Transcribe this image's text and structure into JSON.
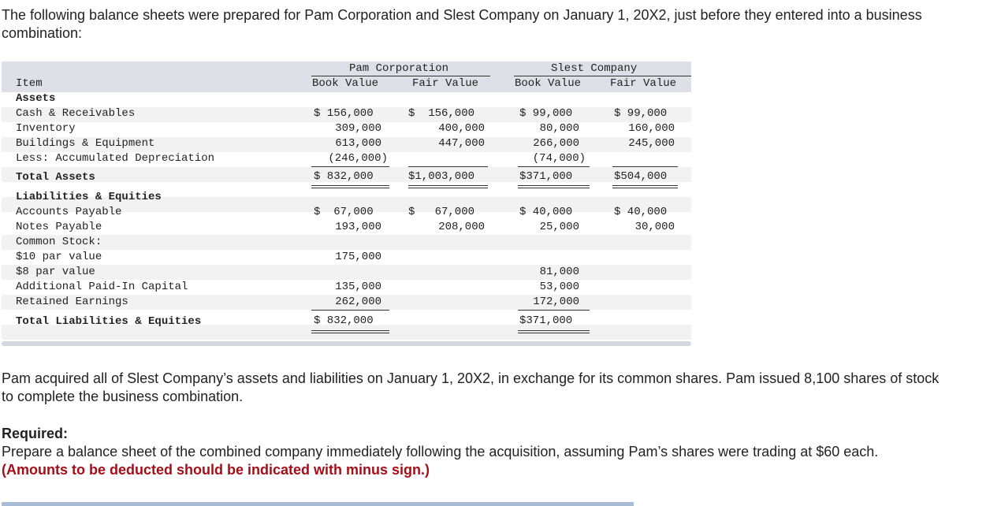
{
  "intro": "The following balance sheets were prepared for Pam Corporation and Slest Company on January 1, 20X2, just before they entered into a business combination:",
  "table": {
    "item_header": "Item",
    "pam_header": "Pam Corporation",
    "slest_header": "Slest Company",
    "book_value": "Book Value",
    "fair_value": "Fair Value",
    "assets_label": "Assets",
    "liab_label": "Liabilities & Equities",
    "rows": [
      {
        "label": "Cash & Receivables",
        "pb": "$ 156,000",
        "pf": "$  156,000",
        "sb": "$ 99,000",
        "sf": "$ 99,000"
      },
      {
        "label": "Inventory",
        "pb": "309,000",
        "pf": "400,000",
        "sb": "80,000",
        "sf": "160,000"
      },
      {
        "label": "Buildings & Equipment",
        "pb": "613,000",
        "pf": "447,000",
        "sb": "266,000",
        "sf": "245,000"
      },
      {
        "label": "Less: Accumulated Depreciation",
        "pb": "(246,000)",
        "pf": "",
        "sb": "(74,000)",
        "sf": ""
      },
      {
        "label": "Total Assets",
        "pb": "$ 832,000",
        "pf": "$1,003,000",
        "sb": "$371,000",
        "sf": "$504,000"
      },
      {
        "label": "Accounts Payable",
        "pb": "$  67,000",
        "pf": "$   67,000",
        "sb": "$ 40,000",
        "sf": "$ 40,000"
      },
      {
        "label": "Notes Payable",
        "pb": "193,000",
        "pf": "208,000",
        "sb": "25,000",
        "sf": "30,000"
      },
      {
        "label": "Common Stock:",
        "pb": "",
        "pf": "",
        "sb": "",
        "sf": ""
      },
      {
        "label": "$10 par value",
        "pb": "175,000",
        "pf": "",
        "sb": "",
        "sf": ""
      },
      {
        "label": "$8 par value",
        "pb": "",
        "pf": "",
        "sb": "81,000",
        "sf": ""
      },
      {
        "label": "Additional Paid-In Capital",
        "pb": "135,000",
        "pf": "",
        "sb": "53,000",
        "sf": ""
      },
      {
        "label": "Retained Earnings",
        "pb": "262,000",
        "pf": "",
        "sb": "172,000",
        "sf": ""
      },
      {
        "label": "Total Liabilities & Equities",
        "pb": "$ 832,000",
        "pf": "",
        "sb": "$371,000",
        "sf": ""
      }
    ]
  },
  "para2": "Pam acquired all of Slest Company’s assets and liabilities on January 1, 20X2, in exchange for its common shares. Pam issued 8,100 shares of stock to complete the business combination.",
  "required_title": "Required:",
  "required_text": "Prepare a balance sheet of the combined company immediately following the acquisition, assuming Pam’s shares were trading at $60 each.",
  "required_note": "(Amounts to be deducted should be indicated with minus sign.)"
}
